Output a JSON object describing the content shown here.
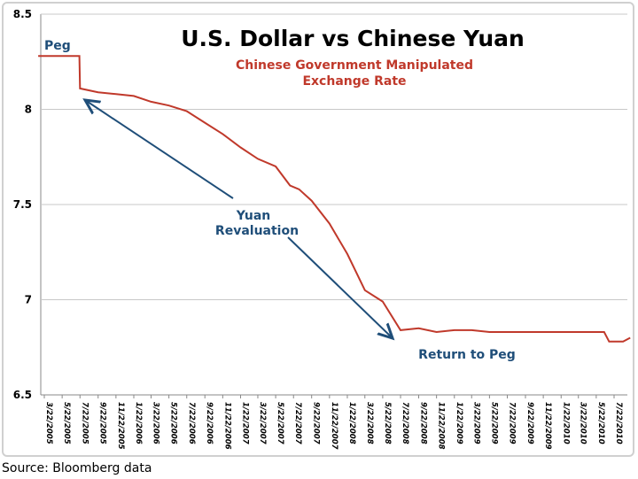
{
  "chart_data": {
    "type": "line",
    "title": "U.S. Dollar vs Chinese Yuan",
    "subtitle": [
      "Chinese Government Manipulated",
      "Exchange Rate"
    ],
    "xlabel": "",
    "ylabel": "",
    "ylim": [
      6.5,
      8.5
    ],
    "yticks": [
      "6.5",
      "7",
      "7.5",
      "8",
      "8.5"
    ],
    "grid": true,
    "xticks": [
      "3/22/2005",
      "5/22/2005",
      "7/22/2005",
      "9/22/2005",
      "11/22/2005",
      "1/22/2006",
      "3/22/2006",
      "5/22/2006",
      "7/22/2006",
      "9/22/2006",
      "11/22/2006",
      "1/22/2007",
      "3/22/2007",
      "5/22/2007",
      "7/22/2007",
      "9/22/2007",
      "11/22/2007",
      "1/22/2008",
      "3/22/2008",
      "5/22/2008",
      "7/22/2008",
      "9/22/2008",
      "11/22/2008",
      "1/22/2009",
      "3/22/2009",
      "5/22/2009",
      "7/22/2009",
      "9/22/2009",
      "11/22/2009",
      "1/22/2010",
      "3/22/2010",
      "5/22/2010",
      "7/22/2010"
    ],
    "series_color": "#c0392b",
    "annotation_color": "#1f4e79",
    "series": [
      {
        "x": [
          "2005-03-01",
          "2005-07-20",
          "2005-07-22",
          "2005-09-22",
          "2005-11-22",
          "2006-01-22",
          "2006-03-22",
          "2006-05-22",
          "2006-07-22",
          "2006-09-22",
          "2006-11-22",
          "2007-01-22",
          "2007-03-22",
          "2007-05-22",
          "2007-07-10",
          "2007-08-10",
          "2007-09-22",
          "2007-11-22",
          "2008-01-22",
          "2008-03-22",
          "2008-05-22",
          "2008-07-22",
          "2008-09-22",
          "2008-11-22",
          "2009-01-22",
          "2009-03-22",
          "2009-05-22",
          "2009-07-22",
          "2009-09-22",
          "2009-11-22",
          "2010-01-22",
          "2010-03-22",
          "2010-06-18",
          "2010-07-05",
          "2010-08-22",
          "2010-09-15"
        ],
        "values": [
          8.28,
          8.28,
          8.11,
          8.09,
          8.08,
          8.07,
          8.04,
          8.02,
          7.99,
          7.93,
          7.87,
          7.8,
          7.74,
          7.7,
          7.6,
          7.58,
          7.52,
          7.4,
          7.24,
          7.05,
          6.99,
          6.84,
          6.85,
          6.83,
          6.84,
          6.84,
          6.83,
          6.83,
          6.83,
          6.83,
          6.83,
          6.83,
          6.83,
          6.78,
          6.78,
          6.8
        ]
      }
    ],
    "annotations": [
      "Peg",
      "Yuan",
      "Revaluation",
      "Return to Peg"
    ]
  },
  "source": "Source: Bloomberg data"
}
